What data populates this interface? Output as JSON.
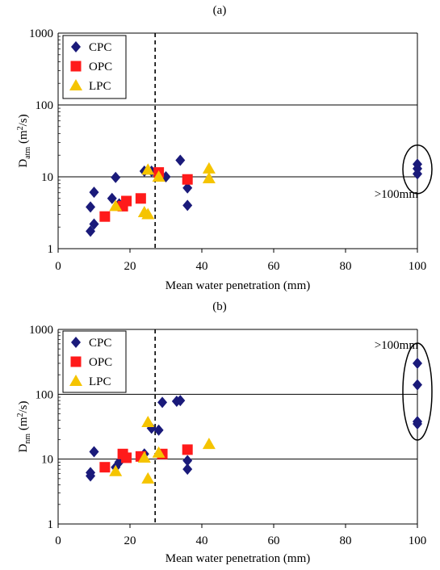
{
  "chart_data": [
    {
      "type": "scatter",
      "panel_label": "(a)",
      "title": "",
      "xlabel": "Mean water penetration (mm)",
      "ylabel_main": "D",
      "ylabel_sub": "atm",
      "ylabel_rest": " (m",
      "ylabel_sup": "2",
      "ylabel_end": "/s)",
      "x_scale": "linear",
      "y_scale": "log",
      "xlim": [
        0,
        100
      ],
      "ylim": [
        1,
        1000
      ],
      "x_ticks": [
        0,
        20,
        40,
        60,
        80,
        100
      ],
      "y_ticks": [
        1,
        10,
        100,
        1000
      ],
      "y_tick_labels": [
        "1",
        "10",
        "100",
        "1000"
      ],
      "grid": "horizontal",
      "legend_position": "top-left",
      "dashed_vline_x": 27,
      "annotation": ">100mm",
      "ellipse_center": [
        100,
        12.7
      ],
      "series": [
        {
          "name": "CPC",
          "marker": "diamond",
          "color": "#1a1a7a",
          "points": [
            [
              9,
              1.75
            ],
            [
              9,
              3.8
            ],
            [
              10,
              2.2
            ],
            [
              10,
              6.1
            ],
            [
              15,
              5
            ],
            [
              16,
              9.8
            ],
            [
              17,
              4.2
            ],
            [
              24,
              12
            ],
            [
              26,
              12
            ],
            [
              27,
              11.5
            ],
            [
              30,
              10
            ],
            [
              34,
              17
            ],
            [
              36,
              4
            ],
            [
              36,
              7
            ],
            [
              100,
              11
            ],
            [
              100,
              13
            ],
            [
              100,
              15
            ]
          ]
        },
        {
          "name": "OPC",
          "marker": "square",
          "color": "#ff1a1a",
          "points": [
            [
              13,
              2.8
            ],
            [
              18,
              3.9
            ],
            [
              19,
              4.6
            ],
            [
              23,
              5
            ],
            [
              28,
              11.5
            ],
            [
              36,
              9.2
            ]
          ]
        },
        {
          "name": "LPC",
          "marker": "triangle",
          "color": "#f5c400",
          "points": [
            [
              16,
              3.9
            ],
            [
              24,
              3.2
            ],
            [
              25,
              3
            ],
            [
              25,
              12.5
            ],
            [
              28,
              10
            ],
            [
              42,
              9.5
            ],
            [
              42,
              13
            ]
          ]
        }
      ]
    },
    {
      "type": "scatter",
      "panel_label": "(b)",
      "title": "",
      "xlabel": "Mean water penetration (mm)",
      "ylabel_main": "D",
      "ylabel_sub": "nm",
      "ylabel_rest": " (m",
      "ylabel_sup": "2",
      "ylabel_end": "/s)",
      "x_scale": "linear",
      "y_scale": "log",
      "xlim": [
        0,
        100
      ],
      "ylim": [
        1,
        1000
      ],
      "x_ticks": [
        0,
        20,
        40,
        60,
        80,
        100
      ],
      "y_ticks": [
        1,
        10,
        100,
        1000
      ],
      "y_tick_labels": [
        "1",
        "10",
        "100",
        "1000"
      ],
      "grid": "horizontal",
      "legend_position": "top-left",
      "dashed_vline_x": 27,
      "annotation": ">100mm",
      "ellipse_center": [
        100,
        110
      ],
      "series": [
        {
          "name": "CPC",
          "marker": "diamond",
          "color": "#1a1a7a",
          "points": [
            [
              9,
              5.5
            ],
            [
              9,
              6.2
            ],
            [
              10,
              13
            ],
            [
              16,
              7.5
            ],
            [
              17,
              9
            ],
            [
              24,
              12
            ],
            [
              26,
              30
            ],
            [
              28,
              28
            ],
            [
              29,
              75
            ],
            [
              33,
              78
            ],
            [
              34,
              80
            ],
            [
              36,
              7
            ],
            [
              36,
              9.5
            ],
            [
              100,
              35
            ],
            [
              100,
              38
            ],
            [
              100,
              140
            ],
            [
              100,
              300
            ]
          ]
        },
        {
          "name": "OPC",
          "marker": "square",
          "color": "#ff1a1a",
          "points": [
            [
              13,
              7.5
            ],
            [
              18,
              12
            ],
            [
              19,
              10.5
            ],
            [
              23,
              11
            ],
            [
              29,
              12
            ],
            [
              36,
              14
            ]
          ]
        },
        {
          "name": "LPC",
          "marker": "triangle",
          "color": "#f5c400",
          "points": [
            [
              16,
              6.5
            ],
            [
              24,
              10.5
            ],
            [
              25,
              5
            ],
            [
              25,
              37
            ],
            [
              28,
              12.5
            ],
            [
              42,
              17
            ]
          ]
        }
      ]
    }
  ]
}
